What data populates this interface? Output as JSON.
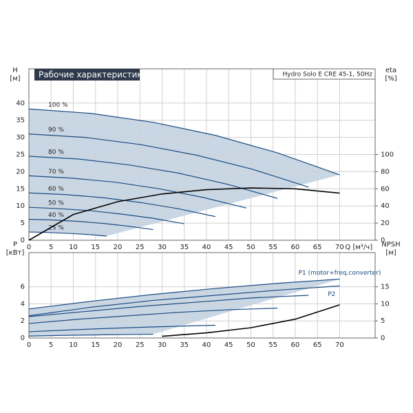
{
  "chart_data": [
    {
      "type": "line",
      "title": "Рабочие характеристики",
      "subtitle": "Hydro Solo E CRE 45-1, 50Hz",
      "y_label": "H",
      "y_unit": "[м]",
      "y2_label": "eta",
      "y2_unit": "[%]",
      "x_label": "Q [м³/ч]",
      "xlim": [
        0,
        78
      ],
      "xticks": [
        0,
        5,
        10,
        15,
        20,
        25,
        30,
        35,
        40,
        45,
        50,
        55,
        60,
        65,
        70
      ],
      "ylim": [
        0,
        50
      ],
      "yticks": [
        0,
        5,
        10,
        15,
        20,
        25,
        30,
        35,
        40
      ],
      "y2lim": [
        0,
        200
      ],
      "y2ticks": [
        0,
        20,
        40,
        60,
        80,
        100
      ],
      "grid": true,
      "series": [
        {
          "name": "100 %",
          "color": "#1a4a80",
          "x": [
            0,
            14,
            28,
            42,
            56,
            70
          ],
          "values": [
            38.3,
            37.0,
            34.4,
            30.6,
            25.5,
            19.1
          ]
        },
        {
          "name": "90 %",
          "color": "#1a4a80",
          "x": [
            0,
            12.6,
            25.2,
            37.8,
            50.4,
            63
          ],
          "values": [
            31.0,
            30.0,
            27.9,
            24.8,
            20.7,
            15.5
          ]
        },
        {
          "name": "80 %",
          "color": "#1a4a80",
          "x": [
            0,
            11.2,
            22.4,
            33.6,
            44.8,
            56
          ],
          "values": [
            24.5,
            23.7,
            22.0,
            19.6,
            16.3,
            12.2
          ]
        },
        {
          "name": "70 %",
          "color": "#1a4a80",
          "x": [
            0,
            9.8,
            19.6,
            29.4,
            39.2,
            49
          ],
          "values": [
            18.8,
            18.1,
            16.9,
            15.0,
            12.5,
            9.4
          ]
        },
        {
          "name": "60 %",
          "color": "#1a4a80",
          "x": [
            0,
            8.4,
            16.8,
            25.2,
            33.6,
            42
          ],
          "values": [
            13.8,
            13.3,
            12.4,
            11.0,
            9.2,
            6.9
          ]
        },
        {
          "name": "50 %",
          "color": "#1a4a80",
          "x": [
            0,
            7,
            14,
            21,
            28,
            35
          ],
          "values": [
            9.6,
            9.2,
            8.6,
            7.6,
            6.4,
            4.8
          ]
        },
        {
          "name": "40 %",
          "color": "#1a4a80",
          "x": [
            0,
            5.6,
            11.2,
            16.8,
            22.4,
            28
          ],
          "values": [
            6.1,
            5.9,
            5.5,
            4.9,
            4.1,
            3.1
          ]
        },
        {
          "name": "25 %",
          "color": "#1a4a80",
          "x": [
            0,
            3.5,
            7,
            10.5,
            14,
            17.5
          ],
          "values": [
            2.4,
            2.3,
            2.1,
            1.9,
            1.6,
            1.2
          ]
        },
        {
          "color": "#000000",
          "axis": "y2",
          "x": [
            0,
            10,
            20,
            30,
            40,
            50,
            60,
            70
          ],
          "values": [
            0,
            30,
            45,
            54,
            59,
            61,
            60,
            55
          ]
        }
      ]
    },
    {
      "type": "line",
      "y_label": "P",
      "y_unit": "[кВт]",
      "y2_label": "NPSH",
      "y2_unit": "[м]",
      "xlim": [
        0,
        78
      ],
      "xticks": [
        0,
        5,
        10,
        15,
        20,
        25,
        30,
        35,
        40,
        45,
        50,
        55,
        60,
        65,
        70
      ],
      "ylim": [
        0,
        10
      ],
      "yticks": [
        0,
        2,
        4,
        6
      ],
      "y2lim": [
        0,
        25
      ],
      "y2ticks": [
        0,
        5,
        10,
        15
      ],
      "grid": true,
      "series": [
        {
          "name": "P1 (motor+freq.converter)",
          "color": "#1a4a80",
          "x": [
            0,
            14,
            28,
            42,
            56,
            70
          ],
          "values": [
            3.4,
            4.3,
            5.1,
            5.8,
            6.4,
            6.9
          ]
        },
        {
          "name": "P2",
          "color": "#1a4a80",
          "x": [
            0,
            14,
            28,
            42,
            56,
            70
          ],
          "values": [
            2.6,
            3.6,
            4.4,
            5.0,
            5.6,
            6.1
          ]
        },
        {
          "color": "#1a4a80",
          "x": [
            0,
            12.6,
            25.2,
            37.8,
            50.4,
            63
          ],
          "values": [
            2.5,
            3.1,
            3.7,
            4.2,
            4.7,
            5.0
          ]
        },
        {
          "color": "#1a4a80",
          "x": [
            0,
            11.2,
            22.4,
            33.6,
            44.8,
            56
          ],
          "values": [
            1.7,
            2.2,
            2.6,
            3.0,
            3.3,
            3.5
          ]
        },
        {
          "color": "#1a4a80",
          "x": [
            0,
            8.4,
            16.8,
            25.2,
            33.6,
            42
          ],
          "values": [
            0.73,
            0.93,
            1.1,
            1.25,
            1.38,
            1.49
          ]
        },
        {
          "color": "#1a4a80",
          "x": [
            0,
            5.6,
            11.2,
            16.8,
            22.4,
            28
          ],
          "values": [
            0.22,
            0.28,
            0.33,
            0.37,
            0.41,
            0.44
          ]
        },
        {
          "color": "#000000",
          "axis": "y2",
          "x": [
            30,
            40,
            50,
            60,
            70
          ],
          "values": [
            0.5,
            1.5,
            3,
            5.5,
            9.7
          ]
        }
      ]
    }
  ]
}
